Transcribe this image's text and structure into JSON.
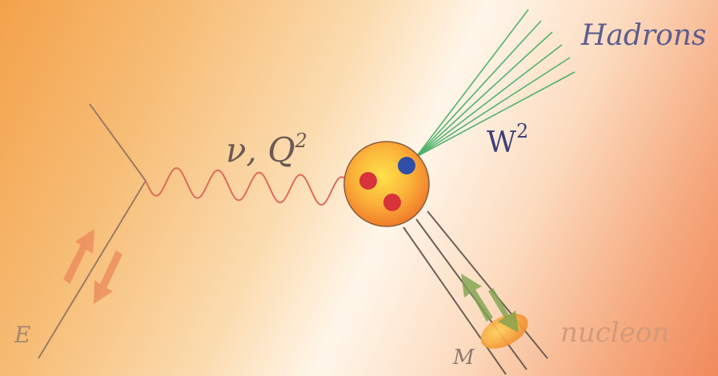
{
  "labels": {
    "hadrons": "Hadrons",
    "w2_base": "W",
    "w2_exp": "2",
    "photon_base": "ν, Q",
    "photon_exp": "2",
    "electron": "E",
    "target_mass": "M",
    "nucleon": "nucleon"
  },
  "colors": {
    "electron_line": "#9a7b62",
    "photon": "#e06a5a",
    "hadron_jets": "#4fb36b",
    "quark_red": "#d8323a",
    "quark_blue": "#2f4fa8",
    "spin_arrow_electron": "#ec8f5e",
    "spin_arrow_nucleon": "#7ea34e",
    "nucleon_ellipse": "#f29a36"
  },
  "icons": {
    "electron_spin": "double-arrow-icon",
    "nucleon_spin": "double-arrow-icon"
  }
}
